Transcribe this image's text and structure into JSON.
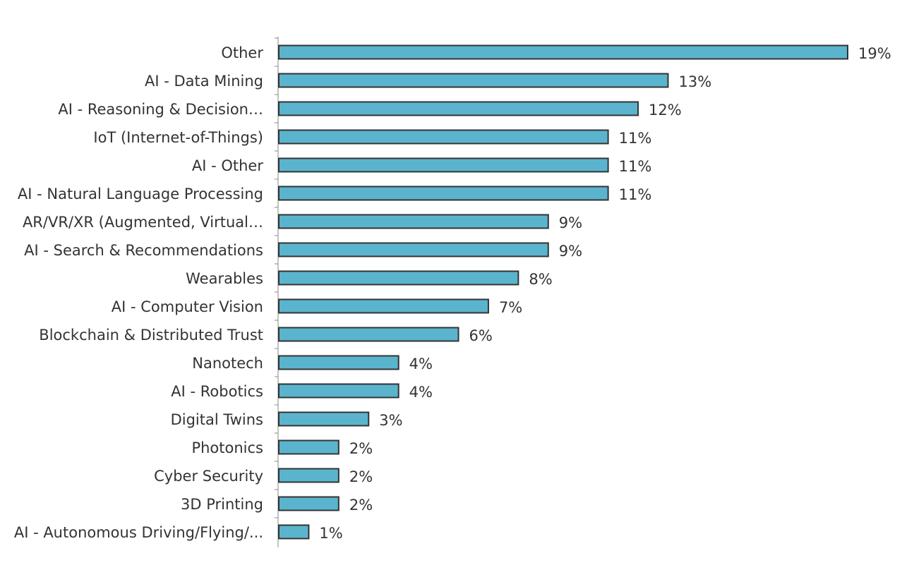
{
  "chart_data": {
    "type": "bar",
    "orientation": "horizontal",
    "categories": [
      "Other",
      "AI - Data Mining",
      "AI - Reasoning & Decision…",
      "IoT (Internet-of-Things)",
      "AI - Other",
      "AI - Natural Language Processing",
      "AR/VR/XR (Augmented, Virtual…",
      "AI - Search & Recommendations",
      "Wearables",
      "AI - Computer Vision",
      "Blockchain & Distributed Trust",
      "Nanotech",
      "AI - Robotics",
      "Digital Twins",
      "Photonics",
      "Cyber Security",
      "3D Printing",
      "AI - Autonomous Driving/Flying/..."
    ],
    "values": [
      19,
      13,
      12,
      11,
      11,
      11,
      9,
      9,
      8,
      7,
      6,
      4,
      4,
      3,
      2,
      2,
      2,
      1
    ],
    "value_labels": [
      "19%",
      "13%",
      "12%",
      "11%",
      "11%",
      "11%",
      "9%",
      "9%",
      "8%",
      "7%",
      "6%",
      "4%",
      "4%",
      "3%",
      "2%",
      "2%",
      "2%",
      "1%"
    ],
    "unit": "%",
    "title": "",
    "xlabel": "",
    "ylabel": "",
    "xlim": [
      0,
      19
    ],
    "grid": false,
    "legend": "none",
    "bar_color": "#5bb4cd",
    "bar_edge_color": "#333333",
    "text_color": "#333333"
  }
}
